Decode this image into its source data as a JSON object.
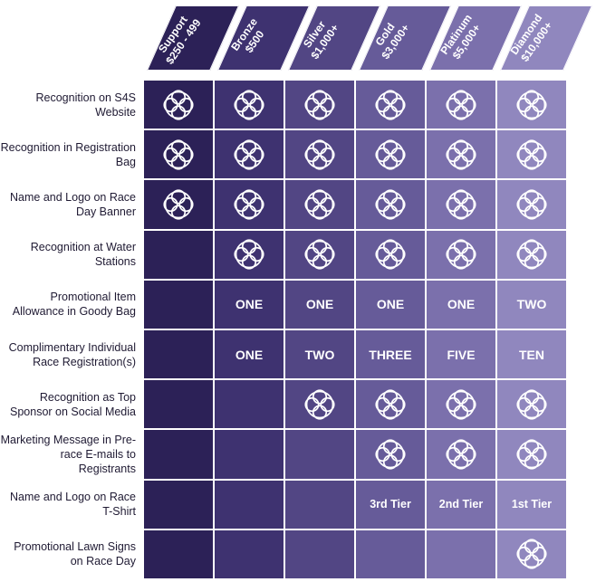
{
  "colors": {
    "tier_bg": [
      "#2c2157",
      "#3e3270",
      "#524684",
      "#665b99",
      "#7b70ac",
      "#9087be"
    ],
    "label_text": "#1f1a33"
  },
  "icon_name": "circular-knot-icon",
  "tiers": [
    {
      "name": "Support",
      "price": "$250 - 499"
    },
    {
      "name": "Bronze",
      "price": "$500"
    },
    {
      "name": "Silver",
      "price": "$1,000+"
    },
    {
      "name": "Gold",
      "price": "$3,000+"
    },
    {
      "name": "Platinum",
      "price": "$5,000+"
    },
    {
      "name": "Diamond",
      "price": "$10,000+"
    }
  ],
  "rows": [
    {
      "label": "Recognition on S4S Website",
      "cells": [
        "icon",
        "icon",
        "icon",
        "icon",
        "icon",
        "icon"
      ]
    },
    {
      "label": "Recognition in Registration Bag",
      "cells": [
        "icon",
        "icon",
        "icon",
        "icon",
        "icon",
        "icon"
      ]
    },
    {
      "label": "Name and Logo on Race Day Banner",
      "cells": [
        "icon",
        "icon",
        "icon",
        "icon",
        "icon",
        "icon"
      ]
    },
    {
      "label": "Recognition at Water Stations",
      "cells": [
        "",
        "icon",
        "icon",
        "icon",
        "icon",
        "icon"
      ]
    },
    {
      "label": "Promotional Item Allowance in Goody Bag",
      "cells": [
        "",
        "ONE",
        "ONE",
        "ONE",
        "ONE",
        "TWO"
      ]
    },
    {
      "label": "Complimentary Individual Race Registration(s)",
      "cells": [
        "",
        "ONE",
        "TWO",
        "THREE",
        "FIVE",
        "TEN"
      ]
    },
    {
      "label": "Recognition as Top Sponsor on Social Media",
      "cells": [
        "",
        "",
        "icon",
        "icon",
        "icon",
        "icon"
      ]
    },
    {
      "label": "Marketing Message in Pre-race E-mails to Registrants",
      "cells": [
        "",
        "",
        "",
        "icon",
        "icon",
        "icon"
      ]
    },
    {
      "label": "Name and Logo on Race T-Shirt",
      "cells": [
        "",
        "",
        "",
        "3rd Tier",
        "2nd Tier",
        "1st Tier"
      ]
    },
    {
      "label": "Promotional Lawn Signs on Race Day",
      "cells": [
        "",
        "",
        "",
        "",
        "",
        "icon"
      ]
    }
  ]
}
